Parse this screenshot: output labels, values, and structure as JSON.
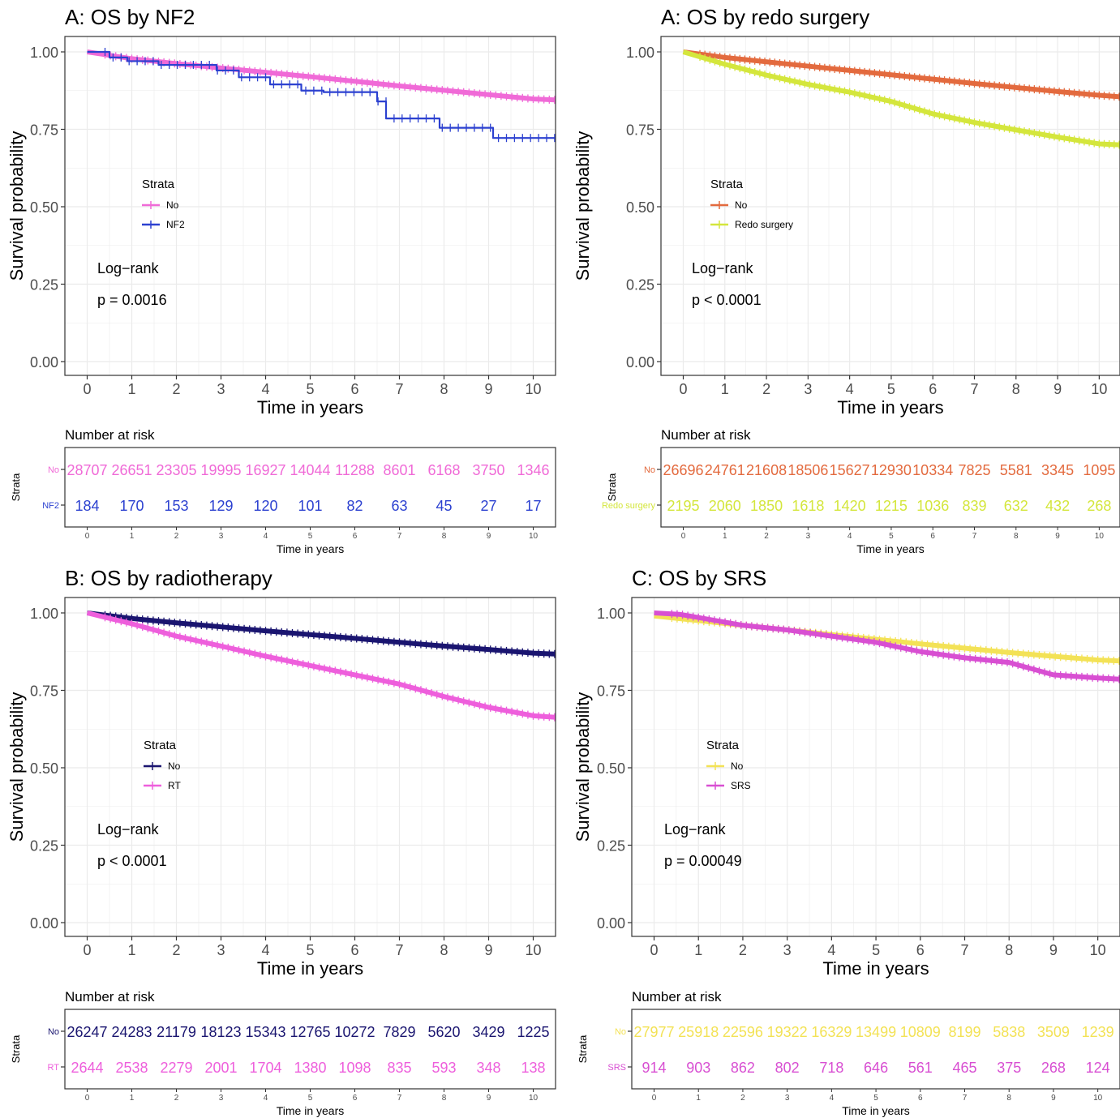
{
  "chart_data": [
    {
      "type": "line",
      "subtype": "kaplan-meier",
      "title": "A: OS by NF2",
      "xlabel": "Time in years",
      "ylabel": "Survival probability",
      "xlim": [
        0,
        10.5
      ],
      "ylim": [
        0,
        1
      ],
      "x_ticks": [
        0,
        1,
        2,
        3,
        4,
        5,
        6,
        7,
        8,
        9,
        10
      ],
      "y_ticks": [
        "0.00",
        "0.25",
        "0.50",
        "0.75",
        "1.00"
      ],
      "grid": true,
      "legend": {
        "title": "Strata",
        "placement": "middle-left"
      },
      "annotation": {
        "line1": "Log−rank",
        "line2": "p = 0.0016"
      },
      "series": [
        {
          "name": "No",
          "color": "#f06ad7",
          "x": [
            0,
            1,
            2,
            3,
            4,
            5,
            6,
            7,
            8,
            9,
            10,
            10.5
          ],
          "y": [
            1.0,
            0.978,
            0.962,
            0.948,
            0.934,
            0.92,
            0.905,
            0.89,
            0.876,
            0.862,
            0.848,
            0.845
          ]
        },
        {
          "name": "NF2",
          "color": "#2c41d0",
          "step": true,
          "x": [
            0,
            0.5,
            0.9,
            1.6,
            2.9,
            3.4,
            4.1,
            4.8,
            5.3,
            6.5,
            6.7,
            7.9,
            9.1,
            10.5
          ],
          "y": [
            1.0,
            0.982,
            0.97,
            0.958,
            0.94,
            0.918,
            0.895,
            0.875,
            0.87,
            0.84,
            0.785,
            0.755,
            0.722,
            0.722
          ]
        }
      ],
      "risk_table": {
        "title": "Number at risk",
        "ylabel": "Strata",
        "xlabel": "Time in years",
        "rows": [
          {
            "name": "No",
            "color": "#f06ad7",
            "values": [
              "28707",
              "26651",
              "23305",
              "19995",
              "16927",
              "14044",
              "11288",
              "8601",
              "6168",
              "3750",
              "1346"
            ]
          },
          {
            "name": "NF2",
            "color": "#2c41d0",
            "values": [
              "184",
              "170",
              "153",
              "129",
              "120",
              "101",
              "82",
              "63",
              "45",
              "27",
              "17"
            ]
          }
        ]
      }
    },
    {
      "type": "line",
      "subtype": "kaplan-meier",
      "title": "A: OS by redo surgery",
      "xlabel": "Time in years",
      "ylabel": "Survival probability",
      "xlim": [
        0,
        10.5
      ],
      "ylim": [
        0,
        1
      ],
      "x_ticks": [
        0,
        1,
        2,
        3,
        4,
        5,
        6,
        7,
        8,
        9,
        10
      ],
      "y_ticks": [
        "0.00",
        "0.25",
        "0.50",
        "0.75",
        "1.00"
      ],
      "grid": true,
      "legend": {
        "title": "Strata",
        "placement": "middle-left"
      },
      "annotation": {
        "line1": "Log−rank",
        "line2": "p < 0.0001"
      },
      "series": [
        {
          "name": "No",
          "color": "#e36a3e",
          "x": [
            0,
            1,
            2,
            3,
            4,
            5,
            6,
            7,
            8,
            9,
            10,
            10.5
          ],
          "y": [
            1.0,
            0.982,
            0.968,
            0.954,
            0.94,
            0.926,
            0.912,
            0.898,
            0.885,
            0.872,
            0.86,
            0.855
          ]
        },
        {
          "name": "Redo surgery",
          "color": "#d4e63c",
          "x": [
            0,
            1,
            2,
            3,
            4,
            5,
            6,
            7,
            8,
            9,
            10,
            10.5
          ],
          "y": [
            1.0,
            0.96,
            0.925,
            0.895,
            0.87,
            0.84,
            0.8,
            0.772,
            0.748,
            0.725,
            0.703,
            0.7
          ]
        }
      ],
      "risk_table": {
        "title": "Number at risk",
        "ylabel": "Strata",
        "xlabel": "Time in years",
        "rows": [
          {
            "name": "No",
            "color": "#e36a3e",
            "values": [
              "26696",
              "24761",
              "21608",
              "18506",
              "15627",
              "12930",
              "10334",
              "7825",
              "5581",
              "3345",
              "1095"
            ]
          },
          {
            "name": "Redo surgery",
            "color": "#d4e63c",
            "values": [
              "2195",
              "2060",
              "1850",
              "1618",
              "1420",
              "1215",
              "1036",
              "839",
              "632",
              "432",
              "268"
            ]
          }
        ]
      }
    },
    {
      "type": "line",
      "subtype": "kaplan-meier",
      "title": "B: OS by radiotherapy",
      "xlabel": "Time in years",
      "ylabel": "Survival probability",
      "xlim": [
        0,
        10.5
      ],
      "ylim": [
        0,
        1
      ],
      "x_ticks": [
        0,
        1,
        2,
        3,
        4,
        5,
        6,
        7,
        8,
        9,
        10
      ],
      "y_ticks": [
        "0.00",
        "0.25",
        "0.50",
        "0.75",
        "1.00"
      ],
      "grid": true,
      "legend": {
        "title": "Strata",
        "placement": "middle-left"
      },
      "annotation": {
        "line1": "Log−rank",
        "line2": "p < 0.0001"
      },
      "series": [
        {
          "name": "No",
          "color": "#1a1570",
          "x": [
            0,
            1,
            2,
            3,
            4,
            5,
            6,
            7,
            8,
            9,
            10,
            10.5
          ],
          "y": [
            1.0,
            0.982,
            0.968,
            0.955,
            0.942,
            0.93,
            0.918,
            0.905,
            0.893,
            0.882,
            0.87,
            0.867
          ]
        },
        {
          "name": "RT",
          "color": "#ee5fdc",
          "x": [
            0,
            1,
            2,
            3,
            4,
            5,
            6,
            7,
            8,
            9,
            10,
            10.5
          ],
          "y": [
            1.0,
            0.965,
            0.925,
            0.893,
            0.86,
            0.83,
            0.8,
            0.77,
            0.73,
            0.695,
            0.668,
            0.663
          ]
        }
      ],
      "risk_table": {
        "title": "Number at risk",
        "ylabel": "Strata",
        "xlabel": "Time in years",
        "rows": [
          {
            "name": "No",
            "color": "#1a1570",
            "values": [
              "26247",
              "24283",
              "21179",
              "18123",
              "15343",
              "12765",
              "10272",
              "7829",
              "5620",
              "3429",
              "1225"
            ]
          },
          {
            "name": "RT",
            "color": "#ee5fdc",
            "values": [
              "2644",
              "2538",
              "2279",
              "2001",
              "1704",
              "1380",
              "1098",
              "835",
              "593",
              "348",
              "138"
            ]
          }
        ]
      }
    },
    {
      "type": "line",
      "subtype": "kaplan-meier",
      "title": "C: OS by SRS",
      "xlabel": "Time in years",
      "ylabel": "Survival probability",
      "xlim": [
        0,
        10.5
      ],
      "ylim": [
        0,
        1
      ],
      "x_ticks": [
        0,
        1,
        2,
        3,
        4,
        5,
        6,
        7,
        8,
        9,
        10
      ],
      "y_ticks": [
        "0.00",
        "0.25",
        "0.50",
        "0.75",
        "1.00"
      ],
      "grid": true,
      "legend": {
        "title": "Strata",
        "placement": "middle-left"
      },
      "annotation": {
        "line1": "Log−rank",
        "line2": "p = 0.00049"
      },
      "series": [
        {
          "name": "No",
          "color": "#f3e256",
          "x": [
            0,
            1,
            2,
            3,
            4,
            5,
            6,
            7,
            8,
            9,
            10,
            10.5
          ],
          "y": [
            0.99,
            0.975,
            0.96,
            0.945,
            0.93,
            0.915,
            0.9,
            0.886,
            0.872,
            0.86,
            0.848,
            0.845
          ]
        },
        {
          "name": "SRS",
          "color": "#d84fd2",
          "x": [
            0,
            0.6,
            1,
            2,
            3,
            4,
            5,
            6,
            7,
            8,
            9,
            10,
            10.5
          ],
          "y": [
            1.0,
            0.995,
            0.985,
            0.96,
            0.945,
            0.925,
            0.905,
            0.875,
            0.855,
            0.84,
            0.8,
            0.79,
            0.786
          ]
        }
      ],
      "risk_table": {
        "title": "Number at risk",
        "ylabel": "Strata",
        "xlabel": "Time in years",
        "rows": [
          {
            "name": "No",
            "color": "#f3e256",
            "values": [
              "27977",
              "25918",
              "22596",
              "19322",
              "16329",
              "13499",
              "10809",
              "8199",
              "5838",
              "3509",
              "1239"
            ]
          },
          {
            "name": "SRS",
            "color": "#d84fd2",
            "values": [
              "914",
              "903",
              "862",
              "802",
              "718",
              "646",
              "561",
              "465",
              "375",
              "268",
              "124"
            ]
          }
        ]
      }
    }
  ]
}
